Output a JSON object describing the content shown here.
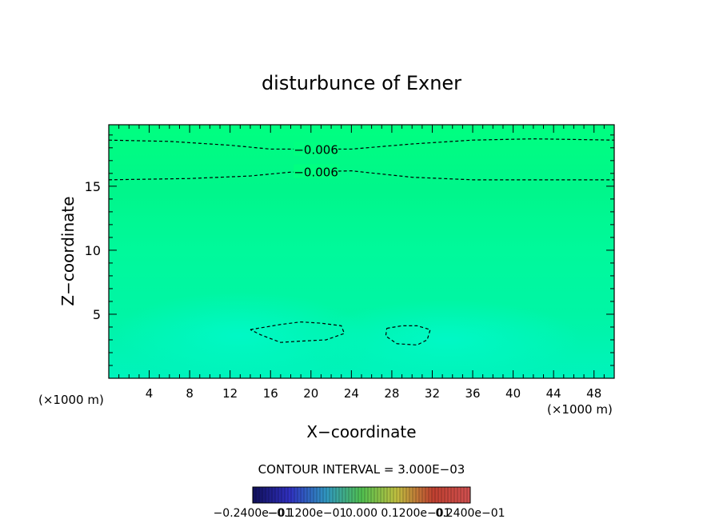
{
  "chart_data": {
    "type": "heatmap",
    "title": "disturbunce of Exner",
    "xlabel": "X−coordinate",
    "ylabel": "Z−coordinate",
    "x_unit_left": "(×1000 m)",
    "x_unit_right": "(×1000 m)",
    "xlim": [
      0,
      50
    ],
    "ylim": [
      0,
      19.8
    ],
    "x_ticks": [
      4,
      8,
      12,
      16,
      20,
      24,
      28,
      32,
      36,
      40,
      44,
      48
    ],
    "y_ticks": [
      5,
      10,
      15
    ],
    "contour_interval_text": "CONTOUR INTERVAL = 3.000E−03",
    "colorbar_labels": [
      "−0.2400e−01",
      "−0.1200e−01",
      "0.000",
      "0.1200e−01",
      "0.2400e−01"
    ],
    "colorbar_range": [
      -0.024,
      0.024
    ],
    "contours": [
      {
        "label": "−0.006",
        "label_x": 20.5,
        "points": [
          [
            0,
            18.6
          ],
          [
            6,
            18.5
          ],
          [
            12,
            18.2
          ],
          [
            16,
            17.9
          ],
          [
            24,
            17.9
          ],
          [
            30,
            18.3
          ],
          [
            36,
            18.6
          ],
          [
            42,
            18.7
          ],
          [
            50,
            18.6
          ]
        ]
      },
      {
        "label": "−0.006",
        "label_x": 20.5,
        "points": [
          [
            0,
            15.5
          ],
          [
            8,
            15.6
          ],
          [
            14,
            15.8
          ],
          [
            18,
            16.1
          ],
          [
            24,
            16.2
          ],
          [
            30,
            15.7
          ],
          [
            36,
            15.5
          ],
          [
            50,
            15.5
          ]
        ]
      },
      {
        "label": "",
        "label_x": null,
        "points": [
          [
            14,
            3.8
          ],
          [
            17,
            4.2
          ],
          [
            19,
            4.4
          ],
          [
            21,
            4.3
          ],
          [
            23,
            4.1
          ],
          [
            23.3,
            3.5
          ],
          [
            21.5,
            3.0
          ],
          [
            19,
            2.9
          ],
          [
            17,
            2.8
          ],
          [
            15,
            3.4
          ],
          [
            14,
            3.8
          ]
        ]
      },
      {
        "label": "",
        "label_x": null,
        "points": [
          [
            27.5,
            3.9
          ],
          [
            29,
            4.1
          ],
          [
            30.5,
            4.1
          ],
          [
            31.8,
            3.8
          ],
          [
            31.5,
            3.0
          ],
          [
            30.5,
            2.6
          ],
          [
            28.5,
            2.7
          ],
          [
            27.4,
            3.3
          ],
          [
            27.5,
            3.9
          ]
        ]
      }
    ],
    "field_colors": {
      "top": "#00ff80",
      "upper": "#00f68a",
      "middle": "#00f99b",
      "lower": "#00f5a5",
      "bottom": "#00f3bc",
      "blob": "#00f9c8"
    },
    "legend_colors": [
      "#10105a",
      "#3030c0",
      "#3098c0",
      "#50c050",
      "#c0c040",
      "#c04030",
      "#d05050"
    ]
  }
}
